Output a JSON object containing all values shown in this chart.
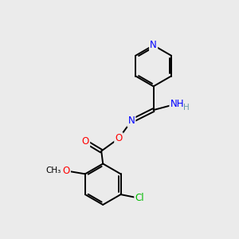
{
  "bg_color": "#ebebeb",
  "atom_colors": {
    "N": "#0000ff",
    "O": "#ff0000",
    "Cl": "#00bb00",
    "C": "#000000",
    "H": "#6699aa"
  },
  "bond_color": "#000000",
  "bond_width": 1.4,
  "font_size_atom": 8.5,
  "figure_size": [
    3.0,
    3.0
  ]
}
